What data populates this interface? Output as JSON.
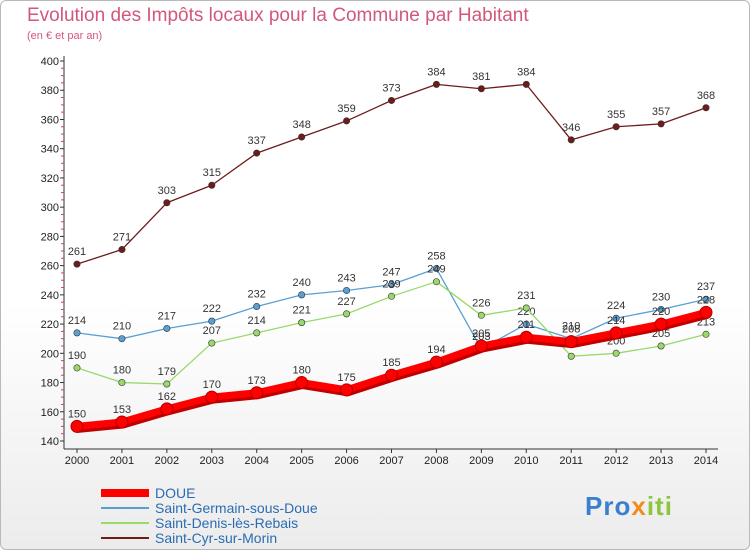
{
  "title": "Evolution des Impôts locaux pour la Commune par Habitant",
  "subtitle": "(en € et par an)",
  "logo": {
    "part1": "Pro",
    "part2": "x",
    "part3": "iti"
  },
  "chart_data": {
    "type": "line",
    "title": "Evolution des Impôts locaux pour la Commune par Habitant",
    "subtitle": "(en € et par an)",
    "x": [
      "2000",
      "2001",
      "2002",
      "2003",
      "2004",
      "2005",
      "2006",
      "2007",
      "2008",
      "2009",
      "2010",
      "2011",
      "2012",
      "2013",
      "2014"
    ],
    "ylim": [
      140,
      400
    ],
    "yticks": [
      140,
      160,
      180,
      200,
      220,
      240,
      260,
      280,
      300,
      320,
      340,
      360,
      380,
      400
    ],
    "grid": false,
    "legend": "bottom-left",
    "series": [
      {
        "name": "DOUE",
        "color": "#ff0000",
        "thick": true,
        "values": [
          150,
          153,
          162,
          170,
          173,
          180,
          175,
          185,
          194,
          205,
          211,
          208,
          214,
          220,
          228
        ]
      },
      {
        "name": "Saint-Germain-sous-Doue",
        "color": "#5a9fd4",
        "thick": false,
        "values": [
          214,
          210,
          217,
          222,
          232,
          240,
          243,
          247,
          258,
          203,
          220,
          210,
          224,
          230,
          237
        ]
      },
      {
        "name": "Saint-Denis-lès-Rebais",
        "color": "#99d96b",
        "thick": false,
        "values": [
          190,
          180,
          179,
          207,
          214,
          221,
          227,
          239,
          249,
          226,
          231,
          198,
          200,
          205,
          213
        ]
      },
      {
        "name": "Saint-Cyr-sur-Morin",
        "color": "#6e1b1b",
        "thick": false,
        "values": [
          261,
          271,
          303,
          315,
          337,
          348,
          359,
          373,
          384,
          381,
          384,
          346,
          355,
          357,
          368
        ]
      }
    ]
  }
}
